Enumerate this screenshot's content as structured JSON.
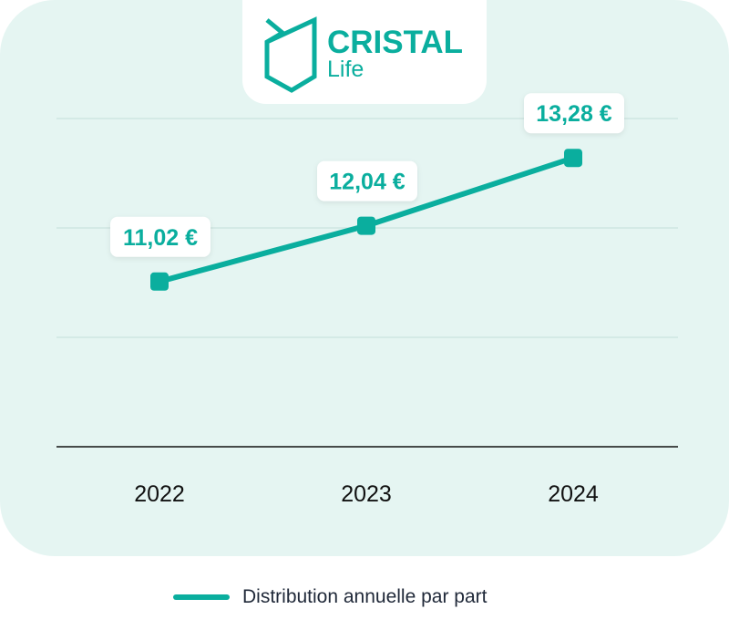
{
  "brand": {
    "name": "CRISTAL",
    "sub": "Life",
    "color": "#0aae9e"
  },
  "chart_data": {
    "type": "line",
    "categories": [
      "2022",
      "2023",
      "2024"
    ],
    "series": [
      {
        "name": "Distribution annuelle par part",
        "values": [
          11.02,
          12.04,
          13.28
        ],
        "labels": [
          "11,02 €",
          "12,04 €",
          "13,28 €"
        ],
        "color": "#0aae9e"
      }
    ],
    "ylim": [
      8,
      14
    ],
    "gridlines": [
      10,
      12,
      14
    ],
    "grid": true,
    "legend": "bottom"
  }
}
